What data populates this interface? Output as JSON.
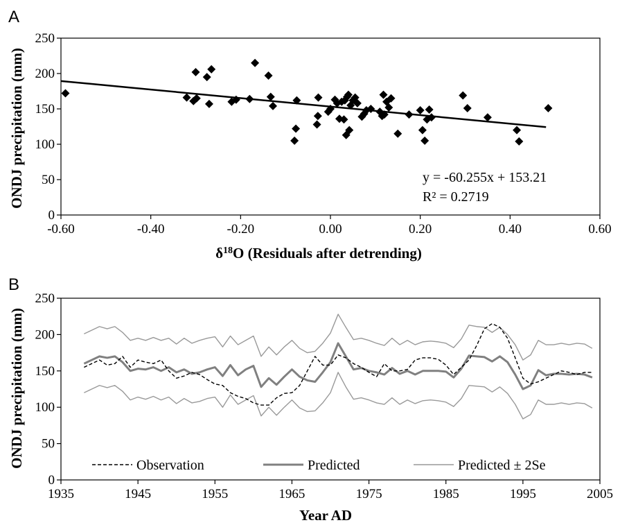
{
  "chart_data": [
    {
      "panel": "A",
      "type": "scatter",
      "title": "",
      "xlabel_base": "δ",
      "xlabel_sup": "18",
      "xlabel_rest": "O  (Residuals after detrending)",
      "ylabel": "ONDJ precipitation (mm)",
      "xlim": [
        -0.6,
        0.6
      ],
      "ylim": [
        0,
        250
      ],
      "xticks": [
        "-0.60",
        "-0.40",
        "-0.20",
        "0.00",
        "0.20",
        "0.40",
        "0.60"
      ],
      "yticks": [
        "0",
        "50",
        "100",
        "150",
        "200",
        "250"
      ],
      "grid": false,
      "points": [
        [
          -0.59,
          172
        ],
        [
          -0.32,
          166
        ],
        [
          -0.305,
          161
        ],
        [
          -0.3,
          202
        ],
        [
          -0.298,
          165
        ],
        [
          -0.275,
          195
        ],
        [
          -0.27,
          157
        ],
        [
          -0.265,
          206
        ],
        [
          -0.22,
          160
        ],
        [
          -0.21,
          163
        ],
        [
          -0.18,
          164
        ],
        [
          -0.168,
          215
        ],
        [
          -0.138,
          197
        ],
        [
          -0.133,
          167
        ],
        [
          -0.128,
          154
        ],
        [
          -0.08,
          105
        ],
        [
          -0.077,
          122
        ],
        [
          -0.075,
          162
        ],
        [
          -0.03,
          128
        ],
        [
          -0.028,
          140
        ],
        [
          -0.027,
          166
        ],
        [
          -0.005,
          146
        ],
        [
          0.0,
          150
        ],
        [
          0.01,
          163
        ],
        [
          0.015,
          158
        ],
        [
          0.02,
          136
        ],
        [
          0.025,
          160
        ],
        [
          0.03,
          135
        ],
        [
          0.032,
          162
        ],
        [
          0.035,
          113
        ],
        [
          0.037,
          167
        ],
        [
          0.04,
          170
        ],
        [
          0.042,
          120
        ],
        [
          0.045,
          155
        ],
        [
          0.05,
          162
        ],
        [
          0.055,
          166
        ],
        [
          0.06,
          158
        ],
        [
          0.07,
          139
        ],
        [
          0.075,
          143
        ],
        [
          0.08,
          148
        ],
        [
          0.09,
          150
        ],
        [
          0.11,
          146
        ],
        [
          0.115,
          140
        ],
        [
          0.118,
          170
        ],
        [
          0.12,
          142
        ],
        [
          0.125,
          160
        ],
        [
          0.13,
          152
        ],
        [
          0.135,
          165
        ],
        [
          0.15,
          115
        ],
        [
          0.175,
          142
        ],
        [
          0.2,
          148
        ],
        [
          0.205,
          120
        ],
        [
          0.21,
          105
        ],
        [
          0.215,
          135
        ],
        [
          0.22,
          149
        ],
        [
          0.225,
          138
        ],
        [
          0.295,
          169
        ],
        [
          0.305,
          151
        ],
        [
          0.35,
          138
        ],
        [
          0.415,
          120
        ],
        [
          0.42,
          104
        ],
        [
          0.485,
          151
        ]
      ],
      "trendline": {
        "slope": -60.255,
        "intercept": 153.21,
        "x_range": [
          -0.6,
          0.48
        ]
      },
      "equation": "y = -60.255x + 153.21",
      "r_squared": "R² = 0.2719"
    },
    {
      "panel": "B",
      "type": "line",
      "title": "",
      "xlabel": "Year AD",
      "ylabel": "ONDJ precipitation (mm)",
      "xlim": [
        1935,
        2005
      ],
      "ylim": [
        0,
        250
      ],
      "xticks": [
        "1935",
        "1945",
        "1955",
        "1965",
        "1975",
        "1985",
        "1995",
        "2005"
      ],
      "yticks": [
        "0",
        "50",
        "100",
        "150",
        "200",
        "250"
      ],
      "grid": false,
      "legend_position": "bottom",
      "x": [
        1938,
        1939,
        1940,
        1941,
        1942,
        1943,
        1944,
        1945,
        1946,
        1947,
        1948,
        1949,
        1950,
        1951,
        1952,
        1953,
        1954,
        1955,
        1956,
        1957,
        1958,
        1959,
        1960,
        1961,
        1962,
        1963,
        1964,
        1965,
        1966,
        1967,
        1968,
        1969,
        1970,
        1971,
        1972,
        1973,
        1974,
        1975,
        1976,
        1977,
        1978,
        1979,
        1980,
        1981,
        1982,
        1983,
        1984,
        1985,
        1986,
        1987,
        1988,
        1989,
        1990,
        1991,
        1992,
        1993,
        1994,
        1995,
        1996,
        1997,
        1998,
        1999,
        2000,
        2001,
        2002,
        2003,
        2004
      ],
      "series": [
        {
          "name": "Observation",
          "style": "dashed",
          "color": "#000000",
          "values": [
            155,
            160,
            165,
            158,
            160,
            170,
            155,
            165,
            162,
            160,
            165,
            150,
            140,
            143,
            148,
            145,
            138,
            132,
            130,
            120,
            115,
            112,
            106,
            103,
            103,
            113,
            119,
            120,
            130,
            150,
            170,
            158,
            158,
            172,
            168,
            160,
            155,
            148,
            142,
            160,
            150,
            150,
            152,
            165,
            168,
            168,
            166,
            158,
            145,
            155,
            165,
            185,
            208,
            215,
            210,
            195,
            168,
            140,
            132,
            135,
            140,
            145,
            150,
            148,
            145,
            148,
            148
          ]
        },
        {
          "name": "Predicted",
          "style": "thick",
          "color": "#808080",
          "values": [
            160,
            165,
            170,
            168,
            170,
            162,
            150,
            153,
            152,
            155,
            150,
            155,
            148,
            152,
            146,
            148,
            152,
            155,
            143,
            158,
            144,
            152,
            157,
            128,
            140,
            131,
            142,
            152,
            142,
            137,
            135,
            148,
            162,
            188,
            170,
            152,
            154,
            150,
            148,
            145,
            154,
            146,
            150,
            145,
            150,
            150,
            150,
            149,
            141,
            153,
            171,
            170,
            169,
            163,
            170,
            162,
            145,
            125,
            130,
            151,
            144,
            146,
            146,
            145,
            146,
            145,
            141
          ]
        },
        {
          "name": "Predicted ± 2Se",
          "style": "thin",
          "color": "#999999",
          "values": [
            201,
            206,
            211,
            208,
            211,
            203,
            192,
            195,
            192,
            196,
            192,
            195,
            187,
            195,
            188,
            192,
            195,
            197,
            183,
            198,
            186,
            192,
            198,
            170,
            183,
            172,
            183,
            192,
            181,
            175,
            177,
            188,
            202,
            228,
            210,
            193,
            195,
            192,
            188,
            185,
            195,
            186,
            192,
            186,
            190,
            191,
            190,
            188,
            182,
            194,
            213,
            211,
            210,
            203,
            210,
            200,
            186,
            165,
            172,
            192,
            186,
            186,
            188,
            186,
            188,
            187,
            181
          ]
        },
        {
          "name": "",
          "style": "thin",
          "color": "#999999",
          "values": [
            120,
            125,
            130,
            127,
            130,
            122,
            110,
            114,
            111,
            115,
            110,
            114,
            105,
            112,
            106,
            108,
            112,
            114,
            100,
            117,
            104,
            110,
            116,
            88,
            100,
            89,
            100,
            110,
            99,
            94,
            95,
            106,
            120,
            148,
            128,
            111,
            113,
            110,
            106,
            104,
            113,
            104,
            110,
            105,
            109,
            110,
            109,
            107,
            101,
            112,
            130,
            129,
            128,
            121,
            128,
            119,
            104,
            84,
            90,
            110,
            104,
            104,
            106,
            104,
            106,
            105,
            99
          ]
        }
      ],
      "legend": [
        "Observation",
        "Predicted",
        "Predicted ± 2Se"
      ]
    }
  ],
  "panels": {
    "a_label": "A",
    "b_label": "B"
  }
}
